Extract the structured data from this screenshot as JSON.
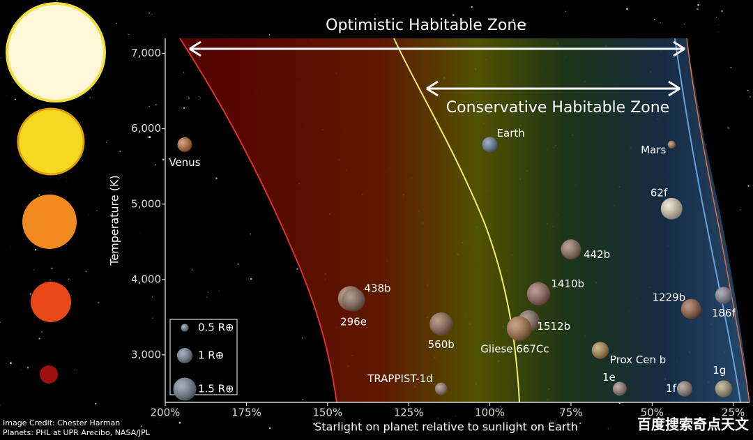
{
  "chart_data": {
    "type": "scatter",
    "title": "Optimistic Habitable Zone",
    "subtitle": "Conservative Habitable Zone",
    "xlabel": "Starlight on planet relative to sunlight on Earth",
    "ylabel": "Temperature (K)",
    "xlim": [
      200,
      20
    ],
    "ylim": [
      2370,
      7200
    ],
    "xticks": [
      {
        "value": 200,
        "label": "200%"
      },
      {
        "value": 175,
        "label": "175%"
      },
      {
        "value": 150,
        "label": "150%"
      },
      {
        "value": 125,
        "label": "125%"
      },
      {
        "value": 100,
        "label": "100%"
      },
      {
        "value": 75,
        "label": "75%"
      },
      {
        "value": 50,
        "label": "50%"
      },
      {
        "value": 25,
        "label": "25%"
      }
    ],
    "yticks": [
      {
        "value": 3000,
        "label": "3,000"
      },
      {
        "value": 4000,
        "label": "4,000"
      },
      {
        "value": 5000,
        "label": "5,000"
      },
      {
        "value": 6000,
        "label": "6,000"
      },
      {
        "value": 7000,
        "label": "7,000"
      }
    ],
    "points": [
      {
        "name": "Venus",
        "x": 194,
        "y": 5790,
        "r": 0.95,
        "color": "#c8703a"
      },
      {
        "name": "Earth",
        "x": 100,
        "y": 5790,
        "r": 1,
        "color": "#6f86a8"
      },
      {
        "name": "Mars",
        "x": 44,
        "y": 5790,
        "r": 0.5,
        "color": "#b47a52"
      },
      {
        "name": "62f",
        "x": 44,
        "y": 4940,
        "r": 1.4,
        "color": "#e8dcc0"
      },
      {
        "name": "442b",
        "x": 75,
        "y": 4400,
        "r": 1.3,
        "color": "#9a7560"
      },
      {
        "name": "438b",
        "x": 143,
        "y": 3750,
        "r": 1.6,
        "color": "#a87a5a"
      },
      {
        "name": "296e",
        "x": 142,
        "y": 3730,
        "r": 1.5,
        "color": "#8c6a58"
      },
      {
        "name": "1410b",
        "x": 85,
        "y": 3810,
        "r": 1.5,
        "color": "#a06a5e"
      },
      {
        "name": "560b",
        "x": 115,
        "y": 3410,
        "r": 1.5,
        "color": "#9a6a50"
      },
      {
        "name": "1512b",
        "x": 88,
        "y": 3450,
        "r": 1.4,
        "color": "#8a7060"
      },
      {
        "name": "Gliese 667Cc",
        "x": 91,
        "y": 3350,
        "r": 1.6,
        "color": "#b07848"
      },
      {
        "name": "1229b",
        "x": 38,
        "y": 3610,
        "r": 1.3,
        "color": "#a06040"
      },
      {
        "name": "186f",
        "x": 28,
        "y": 3790,
        "r": 1.1,
        "color": "#8a8aa0"
      },
      {
        "name": "Prox Cen b",
        "x": 66,
        "y": 3060,
        "r": 1.1,
        "color": "#b89050"
      },
      {
        "name": "TRAPPIST-1d",
        "x": 115,
        "y": 2550,
        "r": 0.8,
        "color": "#a08070"
      },
      {
        "name": "1e",
        "x": 60,
        "y": 2550,
        "r": 0.9,
        "color": "#a08878"
      },
      {
        "name": "1f",
        "x": 40,
        "y": 2550,
        "r": 1.0,
        "color": "#9a8a80"
      },
      {
        "name": "1g",
        "x": 28,
        "y": 2550,
        "r": 1.1,
        "color": "#b0a080"
      }
    ],
    "legend": [
      {
        "value": 0.5,
        "label": "0.5 R⊕"
      },
      {
        "value": 1,
        "label": "1 R⊕"
      },
      {
        "value": 1.5,
        "label": "1.5 R⊕"
      }
    ],
    "credits": [
      "Image Credit: Chester Harman",
      "Planets:  PHL at UPR Arecibo, NASA/JPL"
    ],
    "watermark": "百度搜索奇点天文"
  }
}
